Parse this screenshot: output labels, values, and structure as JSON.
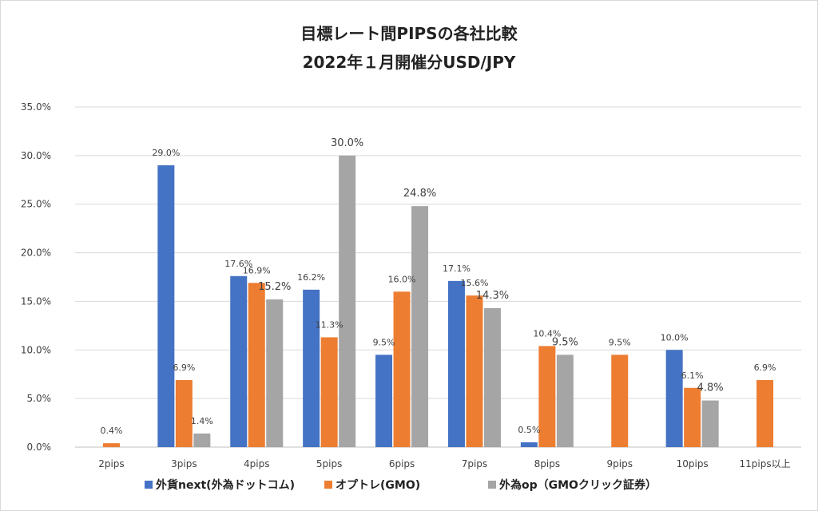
{
  "chart_data": {
    "type": "bar",
    "title": "目標レート間PIPSの各社比較",
    "subtitle": "2022年１月開催分USD/JPY",
    "categories": [
      "2pips",
      "3pips",
      "4pips",
      "5pips",
      "6pips",
      "7pips",
      "8pips",
      "9pips",
      "10pips",
      "11pips以上"
    ],
    "ylim": [
      0,
      35
    ],
    "yticks": [
      "0.0%",
      "5.0%",
      "10.0%",
      "15.0%",
      "20.0%",
      "25.0%",
      "30.0%",
      "35.0%"
    ],
    "grid": true,
    "legend_position": "bottom",
    "series": [
      {
        "name": "外貨next(外為ドットコム)",
        "color": "#4472c4",
        "values": [
          null,
          29.0,
          17.6,
          16.2,
          9.5,
          17.1,
          0.5,
          null,
          10.0,
          null
        ],
        "labels": [
          "",
          "29.0%",
          "17.6%",
          "16.2%",
          "9.5%",
          "17.1%",
          "0.5%",
          "",
          "10.0%",
          ""
        ]
      },
      {
        "name": "オプトレ(GMO)",
        "color": "#ed7d31",
        "values": [
          0.4,
          6.9,
          16.9,
          11.3,
          16.0,
          15.6,
          10.4,
          9.5,
          6.1,
          6.9
        ],
        "labels": [
          "0.4%",
          "6.9%",
          "16.9%",
          "11.3%",
          "16.0%",
          "15.6%",
          "10.4%",
          "9.5%",
          "6.1%",
          "6.9%"
        ]
      },
      {
        "name": "外為op（GMOクリック証券）",
        "color": "#a5a5a5",
        "values": [
          null,
          1.4,
          15.2,
          30.0,
          24.8,
          14.3,
          9.5,
          null,
          4.8,
          null
        ],
        "labels": [
          "",
          "1.4%",
          "15.2%",
          "30.0%",
          "24.8%",
          "14.3%",
          "9.5%",
          "",
          "4.8%",
          ""
        ]
      }
    ]
  }
}
